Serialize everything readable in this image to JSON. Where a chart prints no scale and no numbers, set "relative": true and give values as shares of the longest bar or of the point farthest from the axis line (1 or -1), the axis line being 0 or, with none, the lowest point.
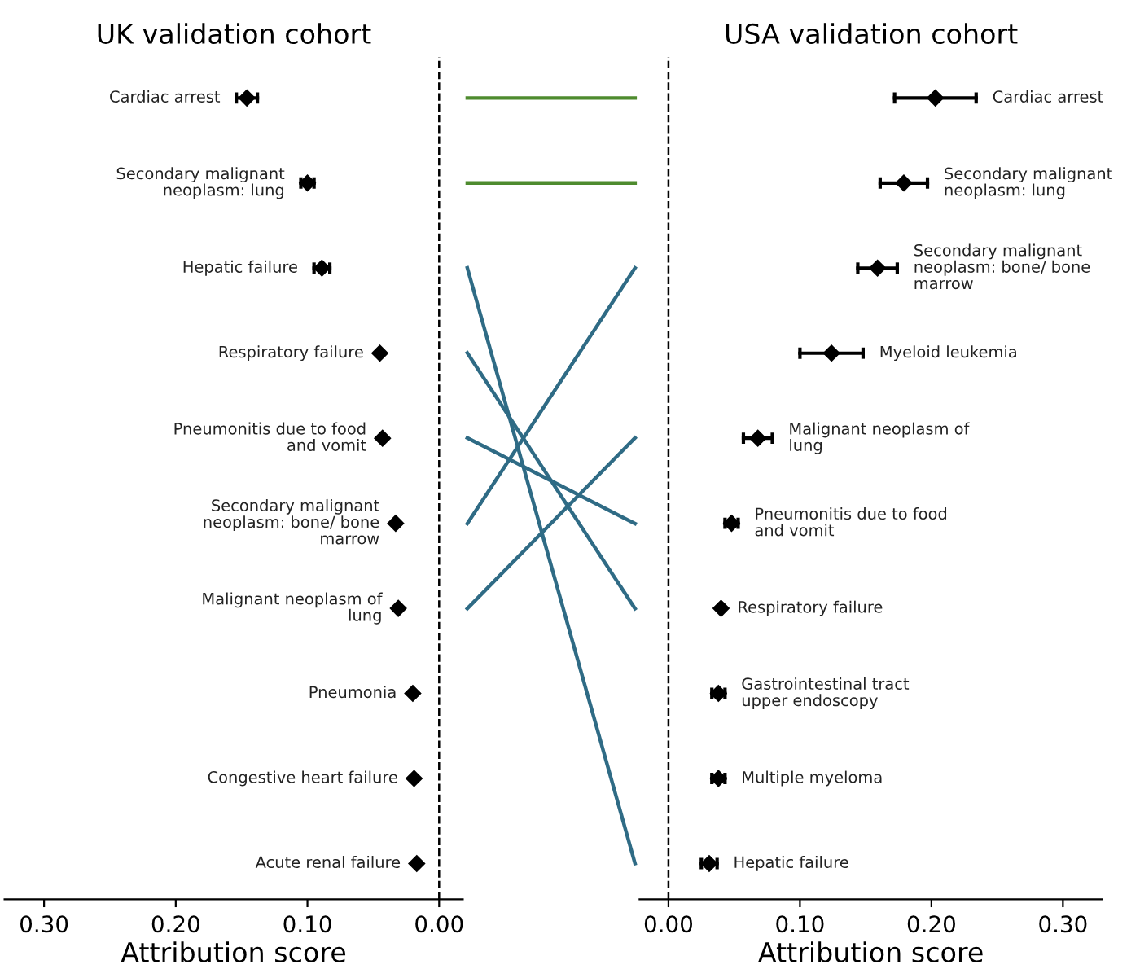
{
  "chart_data": [
    {
      "type": "scatter",
      "orientation": "horizontal",
      "title": "UK validation cohort",
      "xlabel": "Attribution score",
      "categories": [
        "Cardiac arrest",
        "Secondary malignant\nneoplasm: lung",
        "Hepatic failure",
        "Respiratory failure",
        "Pneumonitis due to food\nand vomit",
        "Secondary malignant\nneoplasm: bone/ bone\nmarrow",
        "Malignant neoplasm of\nlung",
        "Pneumonia",
        "Congestive heart failure",
        "Acute renal failure"
      ],
      "values": [
        0.146,
        0.1,
        0.089,
        0.045,
        0.043,
        0.033,
        0.031,
        0.02,
        0.019,
        0.017
      ],
      "errors": [
        0.008,
        0.005,
        0.006,
        null,
        null,
        null,
        null,
        null,
        null,
        null
      ],
      "color": "#000000",
      "marker": "diamond",
      "xlim": [
        0.33,
        -0.018
      ],
      "xticks": [
        {
          "value": 0.3,
          "label": "0.30"
        },
        {
          "value": 0.2,
          "label": "0.20"
        },
        {
          "value": 0.1,
          "label": "0.10"
        },
        {
          "value": 0.0,
          "label": "0.00"
        }
      ],
      "ref_lines": [
        {
          "axis": "x",
          "value": 0,
          "color": "#000000",
          "line_style": "dashed"
        }
      ],
      "tick_labels": "x"
    },
    {
      "type": "line",
      "relative": true,
      "categories": [
        null,
        null
      ],
      "tick_labels": false,
      "series": [
        {
          "color": "#4e8b2e",
          "values": [
            1,
            1
          ]
        },
        {
          "color": "#4e8b2e",
          "values": [
            0.889,
            0.889
          ]
        },
        {
          "color": "#2f6b85",
          "values": [
            0.778,
            0
          ]
        },
        {
          "color": "#2f6b85",
          "values": [
            0.667,
            0.333
          ]
        },
        {
          "color": "#2f6b85",
          "values": [
            0.556,
            0.444
          ]
        },
        {
          "color": "#2f6b85",
          "values": [
            0.444,
            0.778
          ]
        },
        {
          "color": "#2f6b85",
          "values": [
            0.333,
            0.556
          ]
        }
      ]
    },
    {
      "type": "scatter",
      "orientation": "horizontal",
      "title": "USA validation cohort",
      "xlabel": "Attribution score",
      "categories": [
        "Cardiac arrest",
        "Secondary malignant\nneoplasm: lung",
        "Secondary malignant\nneoplasm: bone/ bone\nmarrow",
        "Myeloid leukemia",
        "Malignant neoplasm of\nlung",
        "Pneumonitis due to food\nand vomit",
        "Respiratory failure",
        "Gastrointestinal tract\nupper endoscopy",
        "Multiple myeloma",
        "Hepatic failure"
      ],
      "values": [
        0.203,
        0.179,
        0.159,
        0.124,
        0.068,
        0.048,
        0.04,
        0.038,
        0.038,
        0.031
      ],
      "errors": [
        0.031,
        0.018,
        0.015,
        0.024,
        0.011,
        0.005,
        null,
        0.005,
        0.005,
        0.006
      ],
      "color": "#000000",
      "marker": "diamond",
      "xlim": [
        -0.022,
        0.33
      ],
      "xticks": [
        {
          "value": 0.0,
          "label": "0.00"
        },
        {
          "value": 0.1,
          "label": "0.10"
        },
        {
          "value": 0.2,
          "label": "0.20"
        },
        {
          "value": 0.3,
          "label": "0.30"
        }
      ],
      "ref_lines": [
        {
          "axis": "x",
          "value": 0,
          "color": "#000000",
          "line_style": "dashed"
        }
      ],
      "tick_labels": "x"
    }
  ]
}
